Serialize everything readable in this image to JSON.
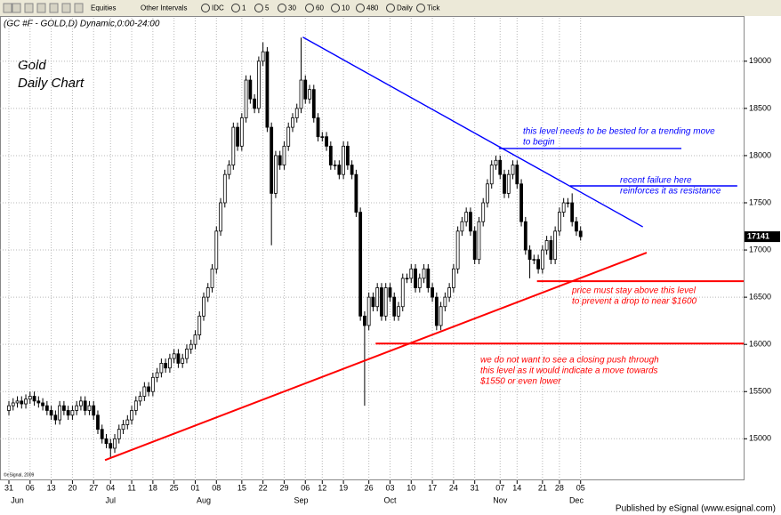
{
  "toolbar": {
    "items": [
      "Equities",
      "Other Intervals",
      "IDC",
      "1",
      "5",
      "30",
      "60",
      "10",
      "480",
      "Daily",
      "Tick"
    ]
  },
  "chart_data": {
    "type": "candlestick",
    "title": "(GC #F - GOLD,D) Dynamic,0:00-24:00",
    "subtitle": [
      "Gold",
      "Daily Chart"
    ],
    "copyright": "©eSignal, 2009",
    "ylim": [
      14560,
      19460
    ],
    "yticks": [
      15000,
      15500,
      16000,
      16500,
      17000,
      17500,
      18000,
      18500,
      19000
    ],
    "xlim": [
      -2.1,
      173.5
    ],
    "xticks": [
      {
        "value": 0,
        "label": "31"
      },
      {
        "value": 5,
        "label": "06"
      },
      {
        "value": 10,
        "label": "13"
      },
      {
        "value": 15,
        "label": "20"
      },
      {
        "value": 20,
        "label": "27"
      },
      {
        "value": 24,
        "label": "04"
      },
      {
        "value": 29,
        "label": "11"
      },
      {
        "value": 34,
        "label": "18"
      },
      {
        "value": 39,
        "label": "25"
      },
      {
        "value": 44,
        "label": "01"
      },
      {
        "value": 49,
        "label": "08"
      },
      {
        "value": 55,
        "label": "15"
      },
      {
        "value": 60,
        "label": "22"
      },
      {
        "value": 65,
        "label": "29"
      },
      {
        "value": 70,
        "label": "06"
      },
      {
        "value": 74,
        "label": "12"
      },
      {
        "value": 79,
        "label": "19"
      },
      {
        "value": 85,
        "label": "26"
      },
      {
        "value": 90,
        "label": "03"
      },
      {
        "value": 95,
        "label": "10"
      },
      {
        "value": 100,
        "label": "17"
      },
      {
        "value": 105,
        "label": "24"
      },
      {
        "value": 110,
        "label": "31"
      },
      {
        "value": 116,
        "label": "07"
      },
      {
        "value": 120,
        "label": "14"
      },
      {
        "value": 126,
        "label": "21"
      },
      {
        "value": 130,
        "label": "28"
      },
      {
        "value": 135,
        "label": "05"
      }
    ],
    "month_labels": [
      {
        "value": 2,
        "label": "Jun"
      },
      {
        "value": 24,
        "label": "Jul"
      },
      {
        "value": 46,
        "label": "Aug"
      },
      {
        "value": 69,
        "label": "Sep"
      },
      {
        "value": 90,
        "label": "Oct"
      },
      {
        "value": 116,
        "label": "Nov"
      },
      {
        "value": 134,
        "label": "Dec"
      }
    ],
    "grid": true,
    "up_color": "#ffffff",
    "down_color": "#000000",
    "open": [
      15300,
      15350,
      15380,
      15400,
      15370,
      15420,
      15450,
      15400,
      15380,
      15350,
      15300,
      15250,
      15200,
      15350,
      15300,
      15250,
      15300,
      15350,
      15400,
      15300,
      15350,
      15250,
      15100,
      15000,
      14950,
      14900,
      15000,
      15100,
      15150,
      15200,
      15300,
      15400,
      15450,
      15550,
      15500,
      15650,
      15700,
      15800,
      15750,
      15850,
      15900,
      15800,
      15850,
      15950,
      16000,
      16100,
      16300,
      16500,
      16600,
      16800,
      17200,
      17500,
      17800,
      17900,
      18300,
      18100,
      18400,
      18800,
      18600,
      18500,
      19000,
      19100,
      18300,
      17600,
      18000,
      17900,
      18100,
      18300,
      18400,
      18500,
      18800,
      18600,
      18700,
      18400,
      18200,
      18200,
      18100,
      17900,
      17900,
      17800,
      18100,
      17900,
      17800,
      17400,
      16300,
      16200,
      16500,
      16400,
      16600,
      16300,
      16600,
      16500,
      16300,
      16400,
      16700,
      16700,
      16800,
      16600,
      16700,
      16800,
      16600,
      16500,
      16200,
      16400,
      16500,
      16600,
      16800,
      17200,
      17300,
      17400,
      17200,
      16900,
      17300,
      17500,
      17700,
      17900,
      17950,
      17800,
      17600,
      17800,
      17900,
      17700,
      17300,
      17000,
      16900,
      16900,
      16800,
      17000,
      17100,
      16900,
      17200,
      17400,
      17500,
      17500,
      17300,
      17200
    ],
    "high": [
      15400,
      15430,
      15450,
      15450,
      15470,
      15500,
      15500,
      15450,
      15430,
      15400,
      15350,
      15300,
      15400,
      15400,
      15350,
      15350,
      15400,
      15450,
      15450,
      15400,
      15400,
      15300,
      15150,
      15050,
      15000,
      15050,
      15150,
      15200,
      15250,
      15350,
      15450,
      15500,
      15600,
      15600,
      15700,
      15750,
      15850,
      15850,
      15900,
      15950,
      15950,
      15900,
      16000,
      16050,
      16150,
      16350,
      16550,
      16650,
      16850,
      17250,
      17550,
      17850,
      17950,
      18350,
      18350,
      18450,
      18850,
      18850,
      18650,
      19050,
      19200,
      19150,
      18350,
      18050,
      18050,
      18150,
      18350,
      18450,
      18550,
      19250,
      18850,
      18750,
      18750,
      18450,
      18250,
      18250,
      18150,
      17950,
      17950,
      18150,
      18150,
      17950,
      17850,
      17450,
      16350,
      16550,
      16550,
      16650,
      16650,
      16650,
      16650,
      16550,
      16450,
      16750,
      16750,
      16850,
      16850,
      16750,
      16850,
      16850,
      16650,
      16550,
      16450,
      16550,
      16650,
      16850,
      17250,
      17350,
      17450,
      17450,
      17250,
      17350,
      17550,
      17750,
      17950,
      18000,
      18000,
      17850,
      17850,
      17950,
      17950,
      17750,
      17350,
      17050,
      16950,
      16950,
      17050,
      17150,
      17150,
      17250,
      17450,
      17550,
      17550,
      17600,
      17350,
      17250
    ],
    "low": [
      15250,
      15300,
      15330,
      15320,
      15320,
      15370,
      15350,
      15330,
      15300,
      15250,
      15200,
      15150,
      15150,
      15250,
      15200,
      15200,
      15250,
      15300,
      15250,
      15250,
      15200,
      15050,
      14950,
      14900,
      14800,
      14850,
      14950,
      15050,
      15100,
      15150,
      15250,
      15350,
      15400,
      15450,
      15450,
      15600,
      15650,
      15700,
      15700,
      15800,
      15750,
      15750,
      15800,
      15900,
      15950,
      16050,
      16250,
      16450,
      16550,
      16750,
      17150,
      17450,
      17750,
      17850,
      18050,
      18050,
      18350,
      18550,
      18450,
      18450,
      18950,
      18250,
      17050,
      17550,
      17850,
      17850,
      18050,
      18250,
      18350,
      18450,
      18550,
      18550,
      18350,
      18150,
      18150,
      18050,
      17850,
      17850,
      17750,
      17750,
      17850,
      17750,
      17350,
      16250,
      15350,
      16150,
      16350,
      16350,
      16250,
      16250,
      16450,
      16250,
      16250,
      16350,
      16650,
      16650,
      16550,
      16550,
      16650,
      16550,
      16450,
      16150,
      16150,
      16350,
      16450,
      16550,
      16750,
      17150,
      17250,
      17150,
      16850,
      16850,
      17250,
      17450,
      17650,
      17850,
      17750,
      17550,
      17550,
      17750,
      17650,
      17250,
      16950,
      16700,
      16850,
      16750,
      16750,
      16950,
      16850,
      16850,
      17150,
      17350,
      17450,
      17250,
      17150,
      17100
    ],
    "close": [
      15350,
      15380,
      15400,
      15370,
      15420,
      15450,
      15400,
      15380,
      15350,
      15300,
      15250,
      15200,
      15350,
      15300,
      15250,
      15300,
      15350,
      15400,
      15300,
      15350,
      15250,
      15100,
      15000,
      14950,
      14900,
      15000,
      15100,
      15150,
      15200,
      15300,
      15400,
      15450,
      15550,
      15500,
      15650,
      15700,
      15800,
      15750,
      15850,
      15900,
      15800,
      15850,
      15950,
      16000,
      16100,
      16300,
      16500,
      16600,
      16800,
      17200,
      17500,
      17800,
      17900,
      18300,
      18100,
      18400,
      18800,
      18600,
      18500,
      19000,
      19100,
      18300,
      17600,
      18000,
      17900,
      18100,
      18300,
      18400,
      18500,
      18800,
      18600,
      18700,
      18400,
      18200,
      18200,
      18100,
      17900,
      17900,
      17800,
      18100,
      17900,
      17800,
      17400,
      16300,
      16200,
      16500,
      16400,
      16600,
      16300,
      16600,
      16500,
      16300,
      16400,
      16700,
      16700,
      16800,
      16600,
      16700,
      16800,
      16600,
      16500,
      16200,
      16400,
      16500,
      16600,
      16800,
      17200,
      17300,
      17400,
      17200,
      16900,
      17300,
      17500,
      17700,
      17900,
      17950,
      17800,
      17600,
      17800,
      17900,
      17700,
      17300,
      17000,
      16900,
      16900,
      16800,
      17000,
      17100,
      16900,
      17200,
      17400,
      17500,
      17500,
      17300,
      17200,
      17141
    ],
    "trendlines": [
      {
        "color": "#0000ff",
        "x": [
          69.4,
          149.7
        ],
        "y": [
          19255,
          17245
        ]
      },
      {
        "color": "#ff0000",
        "x": [
          22.7,
          150.6
        ],
        "y": [
          14774,
          16972
        ]
      },
      {
        "color": "#0000ff",
        "x": [
          115.7,
          158.8
        ],
        "y": [
          18075,
          18075
        ]
      },
      {
        "color": "#0000ff",
        "x": [
          132.5,
          172.0
        ],
        "y": [
          17679,
          17679
        ]
      },
      {
        "color": "#ff0000",
        "x": [
          124.7,
          173.5
        ],
        "y": [
          16670,
          16670
        ]
      },
      {
        "color": "#ff0000",
        "x": [
          86.6,
          173.5
        ],
        "y": [
          16009,
          16009
        ]
      }
    ],
    "annotations": [
      {
        "color": "#0000ff",
        "lines": [
          "this level needs to be bested for a trending move",
          "to begin"
        ]
      },
      {
        "color": "#0000ff",
        "lines": [
          "recent failure here",
          "reinforces it as resistance"
        ]
      },
      {
        "color": "#ff0000",
        "lines": [
          "price must stay above this level",
          "to prevent a drop to near $1600"
        ]
      },
      {
        "color": "#ff0000",
        "lines": [
          "we do not want to see a closing push through",
          "this level as it would indicate a move towards",
          "$1550 or even lower"
        ]
      }
    ]
  },
  "footer": "Published by eSignal (www.esignal.com)"
}
